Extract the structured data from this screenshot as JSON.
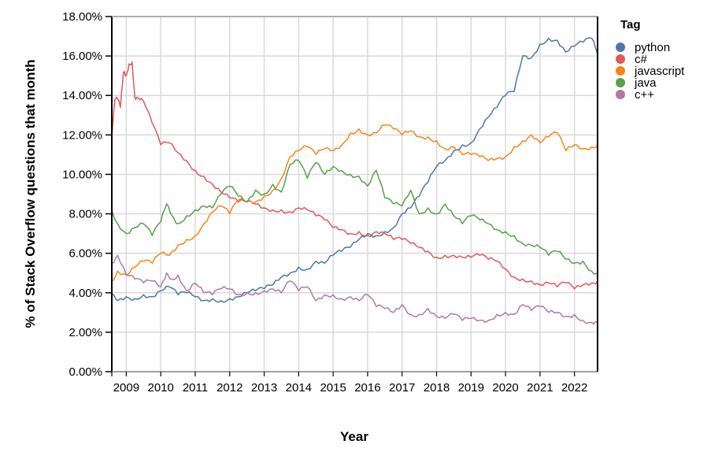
{
  "chart_data": {
    "type": "line",
    "title": "",
    "xlabel": "Year",
    "ylabel": "% of Stack Overflow questions that month",
    "x_ticks": [
      "2009",
      "2010",
      "2011",
      "2012",
      "2013",
      "2014",
      "2015",
      "2016",
      "2017",
      "2018",
      "2019",
      "2020",
      "2021",
      "2022"
    ],
    "y_ticks": [
      "0.00%",
      "2.00%",
      "4.00%",
      "6.00%",
      "8.00%",
      "10.00%",
      "12.00%",
      "14.00%",
      "16.00%",
      "18.00%"
    ],
    "xlim": [
      2008.58,
      2022.67
    ],
    "ylim": [
      0,
      18
    ],
    "grid": true,
    "legend": {
      "title": "Tag",
      "position": "right"
    },
    "series": [
      {
        "name": "python",
        "color": "#4c78a8",
        "x": [
          2008.58,
          2008.75,
          2009.0,
          2009.25,
          2009.5,
          2009.75,
          2010.0,
          2010.25,
          2010.5,
          2010.75,
          2011.0,
          2011.25,
          2011.5,
          2011.75,
          2012.0,
          2012.25,
          2012.5,
          2012.75,
          2013.0,
          2013.25,
          2013.5,
          2013.75,
          2014.0,
          2014.25,
          2014.5,
          2014.75,
          2015.0,
          2015.25,
          2015.5,
          2015.75,
          2016.0,
          2016.25,
          2016.5,
          2016.75,
          2017.0,
          2017.25,
          2017.5,
          2017.75,
          2018.0,
          2018.25,
          2018.5,
          2018.75,
          2019.0,
          2019.25,
          2019.5,
          2019.75,
          2020.0,
          2020.25,
          2020.5,
          2020.75,
          2021.0,
          2021.25,
          2021.5,
          2021.75,
          2022.0,
          2022.25,
          2022.5,
          2022.67
        ],
        "values": [
          3.9,
          3.6,
          3.8,
          3.7,
          3.9,
          3.8,
          4.1,
          4.3,
          3.9,
          4.0,
          3.8,
          3.6,
          3.7,
          3.6,
          3.7,
          3.8,
          4.0,
          4.1,
          4.2,
          4.4,
          4.8,
          5.0,
          5.3,
          5.2,
          5.6,
          5.5,
          5.9,
          6.1,
          6.3,
          6.7,
          7.0,
          6.9,
          7.1,
          7.3,
          8.0,
          8.3,
          8.9,
          9.6,
          10.4,
          10.7,
          11.2,
          11.5,
          11.6,
          12.3,
          12.9,
          13.4,
          14.0,
          14.2,
          16.0,
          15.9,
          16.6,
          16.9,
          16.8,
          16.2,
          16.5,
          16.7,
          16.9,
          16.1
        ]
      },
      {
        "name": "c#",
        "color": "#e45756",
        "x": [
          2008.58,
          2008.67,
          2008.75,
          2008.83,
          2008.92,
          2009.0,
          2009.08,
          2009.17,
          2009.25,
          2009.33,
          2009.5,
          2009.75,
          2010.0,
          2010.25,
          2010.5,
          2010.75,
          2011.0,
          2011.25,
          2011.5,
          2011.75,
          2012.0,
          2012.25,
          2012.5,
          2012.75,
          2013.0,
          2013.25,
          2013.5,
          2013.75,
          2014.0,
          2014.25,
          2014.5,
          2014.75,
          2015.0,
          2015.25,
          2015.5,
          2015.75,
          2016.0,
          2016.25,
          2016.5,
          2016.75,
          2017.0,
          2017.25,
          2017.5,
          2017.75,
          2018.0,
          2018.25,
          2018.5,
          2018.75,
          2019.0,
          2019.25,
          2019.5,
          2019.75,
          2020.0,
          2020.25,
          2020.5,
          2020.75,
          2021.0,
          2021.25,
          2021.5,
          2021.75,
          2022.0,
          2022.25,
          2022.5,
          2022.67
        ],
        "values": [
          11.9,
          13.8,
          13.8,
          13.4,
          15.2,
          15.0,
          15.6,
          15.7,
          13.9,
          13.9,
          13.7,
          12.6,
          11.5,
          11.6,
          11.1,
          10.7,
          10.2,
          9.9,
          9.5,
          9.1,
          8.8,
          8.6,
          8.6,
          8.5,
          8.3,
          8.2,
          8.2,
          8.1,
          8.3,
          8.2,
          7.9,
          7.7,
          7.3,
          7.2,
          7.0,
          7.1,
          6.9,
          7.1,
          7.0,
          6.7,
          6.7,
          6.5,
          6.3,
          6.1,
          5.8,
          5.9,
          5.9,
          5.8,
          5.8,
          5.9,
          5.7,
          5.6,
          5.2,
          4.8,
          4.7,
          4.6,
          4.4,
          4.5,
          4.3,
          4.5,
          4.2,
          4.4,
          4.5,
          4.6
        ]
      },
      {
        "name": "javascript",
        "color": "#f58518",
        "x": [
          2008.58,
          2008.75,
          2009.0,
          2009.25,
          2009.5,
          2009.75,
          2010.0,
          2010.25,
          2010.5,
          2010.75,
          2011.0,
          2011.25,
          2011.5,
          2011.75,
          2012.0,
          2012.25,
          2012.5,
          2012.75,
          2013.0,
          2013.25,
          2013.5,
          2013.75,
          2014.0,
          2014.25,
          2014.5,
          2014.75,
          2015.0,
          2015.25,
          2015.5,
          2015.75,
          2016.0,
          2016.25,
          2016.5,
          2016.75,
          2017.0,
          2017.25,
          2017.5,
          2017.75,
          2018.0,
          2018.25,
          2018.5,
          2018.75,
          2019.0,
          2019.25,
          2019.5,
          2019.75,
          2020.0,
          2020.25,
          2020.5,
          2020.75,
          2021.0,
          2021.25,
          2021.5,
          2021.75,
          2022.0,
          2022.25,
          2022.5,
          2022.67
        ],
        "values": [
          4.6,
          5.1,
          4.9,
          5.3,
          5.6,
          5.5,
          6.0,
          5.9,
          6.4,
          6.7,
          6.9,
          7.5,
          8.1,
          8.4,
          8.0,
          8.7,
          8.6,
          8.6,
          8.9,
          9.2,
          9.8,
          10.9,
          11.2,
          11.4,
          11.0,
          11.3,
          11.2,
          11.5,
          12.1,
          12.3,
          12.0,
          12.1,
          12.5,
          12.3,
          12.0,
          12.2,
          11.9,
          11.9,
          11.7,
          11.3,
          11.4,
          11.0,
          11.0,
          10.9,
          10.7,
          10.8,
          10.9,
          11.4,
          11.7,
          12.0,
          11.6,
          11.9,
          12.1,
          11.2,
          11.5,
          11.3,
          11.4,
          11.5
        ]
      },
      {
        "name": "java",
        "color": "#54a24b",
        "x": [
          2008.58,
          2008.75,
          2009.0,
          2009.25,
          2009.5,
          2009.75,
          2010.0,
          2010.17,
          2010.33,
          2010.5,
          2010.75,
          2011.0,
          2011.25,
          2011.5,
          2011.75,
          2012.0,
          2012.25,
          2012.5,
          2012.75,
          2013.0,
          2013.25,
          2013.5,
          2013.75,
          2014.0,
          2014.25,
          2014.5,
          2014.75,
          2015.0,
          2015.25,
          2015.5,
          2015.75,
          2016.0,
          2016.25,
          2016.5,
          2016.75,
          2017.0,
          2017.25,
          2017.5,
          2017.75,
          2018.0,
          2018.25,
          2018.5,
          2018.75,
          2019.0,
          2019.25,
          2019.5,
          2019.75,
          2020.0,
          2020.25,
          2020.5,
          2020.75,
          2021.0,
          2021.25,
          2021.5,
          2021.75,
          2022.0,
          2022.25,
          2022.5,
          2022.67
        ],
        "values": [
          8.2,
          7.5,
          7.0,
          7.3,
          7.5,
          6.9,
          7.6,
          8.5,
          7.9,
          7.5,
          7.9,
          8.2,
          8.4,
          8.3,
          9.0,
          9.4,
          8.9,
          8.6,
          9.2,
          9.0,
          9.5,
          9.1,
          10.5,
          10.7,
          9.8,
          10.6,
          10.0,
          10.4,
          10.2,
          10.0,
          9.9,
          9.4,
          10.2,
          8.8,
          8.5,
          8.4,
          9.2,
          8.0,
          8.3,
          8.0,
          8.5,
          7.9,
          7.5,
          7.9,
          7.7,
          7.5,
          7.2,
          7.1,
          6.9,
          6.5,
          6.4,
          6.3,
          5.9,
          6.1,
          5.7,
          5.5,
          5.6,
          5.1,
          5.0
        ]
      },
      {
        "name": "c++",
        "color": "#b279a2",
        "x": [
          2008.58,
          2008.75,
          2009.0,
          2009.25,
          2009.5,
          2009.75,
          2010.0,
          2010.17,
          2010.33,
          2010.5,
          2010.75,
          2011.0,
          2011.25,
          2011.5,
          2011.75,
          2012.0,
          2012.25,
          2012.5,
          2012.75,
          2013.0,
          2013.25,
          2013.5,
          2013.75,
          2014.0,
          2014.25,
          2014.5,
          2014.75,
          2015.0,
          2015.25,
          2015.5,
          2015.75,
          2016.0,
          2016.25,
          2016.5,
          2016.75,
          2017.0,
          2017.25,
          2017.5,
          2017.75,
          2018.0,
          2018.25,
          2018.5,
          2018.75,
          2019.0,
          2019.25,
          2019.5,
          2019.75,
          2020.0,
          2020.25,
          2020.5,
          2020.75,
          2021.0,
          2021.25,
          2021.5,
          2021.75,
          2022.0,
          2022.25,
          2022.5,
          2022.67
        ],
        "values": [
          5.5,
          5.9,
          4.9,
          4.7,
          4.5,
          4.6,
          4.3,
          5.0,
          4.7,
          4.9,
          4.1,
          4.5,
          4.0,
          3.9,
          4.2,
          4.2,
          3.9,
          4.0,
          4.0,
          4.1,
          4.2,
          4.0,
          4.6,
          4.1,
          4.3,
          3.6,
          3.9,
          3.9,
          3.7,
          3.8,
          3.6,
          3.9,
          3.3,
          3.2,
          3.0,
          3.4,
          2.9,
          2.9,
          3.2,
          2.8,
          2.7,
          2.9,
          2.6,
          2.7,
          2.6,
          2.6,
          2.9,
          3.0,
          2.9,
          3.4,
          3.1,
          3.3,
          3.0,
          3.0,
          2.8,
          2.9,
          2.6,
          2.5,
          2.5
        ]
      }
    ]
  }
}
